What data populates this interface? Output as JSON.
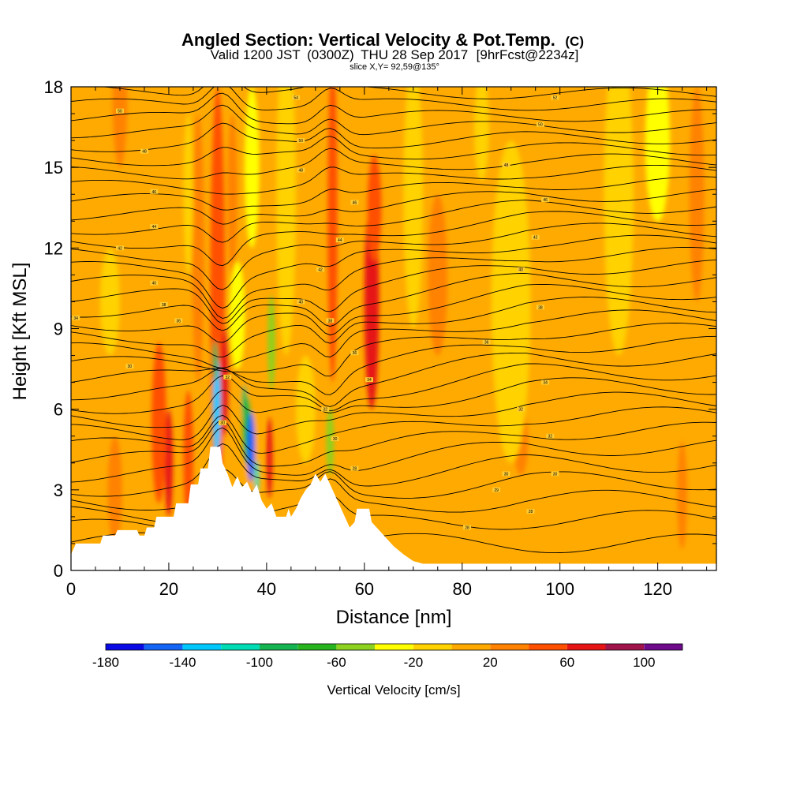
{
  "header": {
    "title": "Angled Section: Vertical Velocity & Pot.Temp.",
    "title_suffix": "(C)",
    "valid_prefix": "Valid 1200 JST",
    "valid_zulu": "(0300Z)",
    "valid_date": "THU 28 Sep 2017",
    "forecast": "[9hrFcst@2234z]",
    "slice": "slice X,Y= 92,59@135°"
  },
  "chart_data": {
    "type": "heatmap",
    "xlabel": "Distance [nm]",
    "ylabel": "Height [Kft MSL]",
    "xlim": [
      0,
      132
    ],
    "ylim": [
      0,
      18
    ],
    "x_ticks": [
      "0",
      "20",
      "40",
      "60",
      "80",
      "100",
      "120"
    ],
    "y_ticks": [
      "0",
      "3",
      "6",
      "9",
      "12",
      "15",
      "18"
    ],
    "colorbar": {
      "label": "Vertical Velocity [cm/s]",
      "tick_labels": [
        "-180",
        "-140",
        "-100",
        "-60",
        "-20",
        "20",
        "60",
        "100"
      ],
      "levels": [
        -180,
        -160,
        -140,
        -120,
        -100,
        -80,
        -60,
        -40,
        -20,
        0,
        20,
        40,
        60,
        80,
        100,
        120
      ],
      "colors": [
        "#0a0ae6",
        "#1464f5",
        "#00c8ff",
        "#00dcb4",
        "#14b450",
        "#28b41e",
        "#8cd21e",
        "#ffff00",
        "#ffd200",
        "#ffaa00",
        "#ff8200",
        "#ff5000",
        "#e61414",
        "#a0144b",
        "#6e0a8c"
      ]
    },
    "terrain_height_kft": [
      {
        "x": 0,
        "h": 0.6
      },
      {
        "x": 1,
        "h": 1.0
      },
      {
        "x": 6,
        "h": 1.0
      },
      {
        "x": 6.5,
        "h": 1.3
      },
      {
        "x": 9,
        "h": 1.3
      },
      {
        "x": 9.5,
        "h": 1.5
      },
      {
        "x": 13.5,
        "h": 1.5
      },
      {
        "x": 14,
        "h": 1.3
      },
      {
        "x": 15,
        "h": 1.3
      },
      {
        "x": 15.5,
        "h": 1.6
      },
      {
        "x": 17,
        "h": 1.6
      },
      {
        "x": 17.5,
        "h": 2.0
      },
      {
        "x": 21,
        "h": 2.0
      },
      {
        "x": 21.5,
        "h": 2.5
      },
      {
        "x": 24,
        "h": 2.5
      },
      {
        "x": 24.5,
        "h": 3.2
      },
      {
        "x": 26,
        "h": 3.2
      },
      {
        "x": 26.5,
        "h": 3.8
      },
      {
        "x": 28,
        "h": 3.8
      },
      {
        "x": 28.5,
        "h": 4.6
      },
      {
        "x": 30.5,
        "h": 4.6
      },
      {
        "x": 31,
        "h": 4.0
      },
      {
        "x": 32,
        "h": 3.6
      },
      {
        "x": 33,
        "h": 3.1
      },
      {
        "x": 34,
        "h": 3.5
      },
      {
        "x": 35,
        "h": 3.1
      },
      {
        "x": 36,
        "h": 3.3
      },
      {
        "x": 37,
        "h": 2.9
      },
      {
        "x": 38,
        "h": 3.2
      },
      {
        "x": 39,
        "h": 2.6
      },
      {
        "x": 40,
        "h": 2.3
      },
      {
        "x": 41,
        "h": 2.5
      },
      {
        "x": 42,
        "h": 2.0
      },
      {
        "x": 44,
        "h": 2.0
      },
      {
        "x": 44.5,
        "h": 2.3
      },
      {
        "x": 45,
        "h": 2.0
      },
      {
        "x": 46,
        "h": 2.3
      },
      {
        "x": 47,
        "h": 2.7
      },
      {
        "x": 48,
        "h": 3.0
      },
      {
        "x": 49,
        "h": 3.2
      },
      {
        "x": 50,
        "h": 3.6
      },
      {
        "x": 51,
        "h": 3.3
      },
      {
        "x": 52,
        "h": 3.6
      },
      {
        "x": 53,
        "h": 3.2
      },
      {
        "x": 54,
        "h": 2.8
      },
      {
        "x": 55,
        "h": 2.4
      },
      {
        "x": 56,
        "h": 2.0
      },
      {
        "x": 57,
        "h": 1.6
      },
      {
        "x": 58,
        "h": 1.8
      },
      {
        "x": 58.5,
        "h": 2.3
      },
      {
        "x": 61,
        "h": 2.3
      },
      {
        "x": 61.5,
        "h": 1.8
      },
      {
        "x": 63,
        "h": 1.5
      },
      {
        "x": 64,
        "h": 1.3
      },
      {
        "x": 66,
        "h": 0.9
      },
      {
        "x": 68,
        "h": 0.6
      },
      {
        "x": 70,
        "h": 0.35
      },
      {
        "x": 72,
        "h": 0.25
      },
      {
        "x": 75,
        "h": 0.25
      },
      {
        "x": 132,
        "h": 0.25
      }
    ],
    "theta_isotherms": {
      "count": 34,
      "labels": [
        {
          "text": "28",
          "x": 81,
          "y": 1.6
        },
        {
          "text": "28",
          "x": 94,
          "y": 2.2
        },
        {
          "text": "29",
          "x": 87,
          "y": 3.0
        },
        {
          "text": "30",
          "x": 89,
          "y": 3.6
        },
        {
          "text": "30",
          "x": 99,
          "y": 3.6
        },
        {
          "text": "32",
          "x": 98,
          "y": 5.0
        },
        {
          "text": "32",
          "x": 92,
          "y": 6.0
        },
        {
          "text": "34",
          "x": 97,
          "y": 7.0
        },
        {
          "text": "36",
          "x": 85,
          "y": 8.5
        },
        {
          "text": "38",
          "x": 96,
          "y": 9.8
        },
        {
          "text": "40",
          "x": 92,
          "y": 11.2
        },
        {
          "text": "42",
          "x": 95,
          "y": 12.4
        },
        {
          "text": "46",
          "x": 97,
          "y": 13.8
        },
        {
          "text": "48",
          "x": 89,
          "y": 15.1
        },
        {
          "text": "50",
          "x": 96,
          "y": 16.6
        },
        {
          "text": "52",
          "x": 99,
          "y": 17.6
        },
        {
          "text": "40",
          "x": 47,
          "y": 10.0
        },
        {
          "text": "42",
          "x": 51,
          "y": 11.2
        },
        {
          "text": "44",
          "x": 55,
          "y": 12.3
        },
        {
          "text": "46",
          "x": 58,
          "y": 13.7
        },
        {
          "text": "48",
          "x": 47,
          "y": 14.9
        },
        {
          "text": "50",
          "x": 47,
          "y": 16.0
        },
        {
          "text": "54",
          "x": 46,
          "y": 17.6
        },
        {
          "text": "38",
          "x": 53,
          "y": 9.3
        },
        {
          "text": "36",
          "x": 58,
          "y": 8.1
        },
        {
          "text": "34",
          "x": 61,
          "y": 7.1
        },
        {
          "text": "32",
          "x": 52,
          "y": 6.0
        },
        {
          "text": "30",
          "x": 54,
          "y": 4.9
        },
        {
          "text": "28",
          "x": 58,
          "y": 3.8
        },
        {
          "text": "36",
          "x": 22,
          "y": 9.3
        },
        {
          "text": "38",
          "x": 19,
          "y": 9.9
        },
        {
          "text": "40",
          "x": 17,
          "y": 10.7
        },
        {
          "text": "42",
          "x": 10,
          "y": 12.0
        },
        {
          "text": "44",
          "x": 17,
          "y": 12.8
        },
        {
          "text": "46",
          "x": 17,
          "y": 14.1
        },
        {
          "text": "48",
          "x": 15,
          "y": 15.6
        },
        {
          "text": "50",
          "x": 10,
          "y": 17.1
        },
        {
          "text": "34",
          "x": 1,
          "y": 9.4
        },
        {
          "text": "30",
          "x": 12,
          "y": 7.6
        },
        {
          "text": "32",
          "x": 32,
          "y": 7.2
        },
        {
          "text": "30",
          "x": 31,
          "y": 5.5
        }
      ]
    }
  }
}
